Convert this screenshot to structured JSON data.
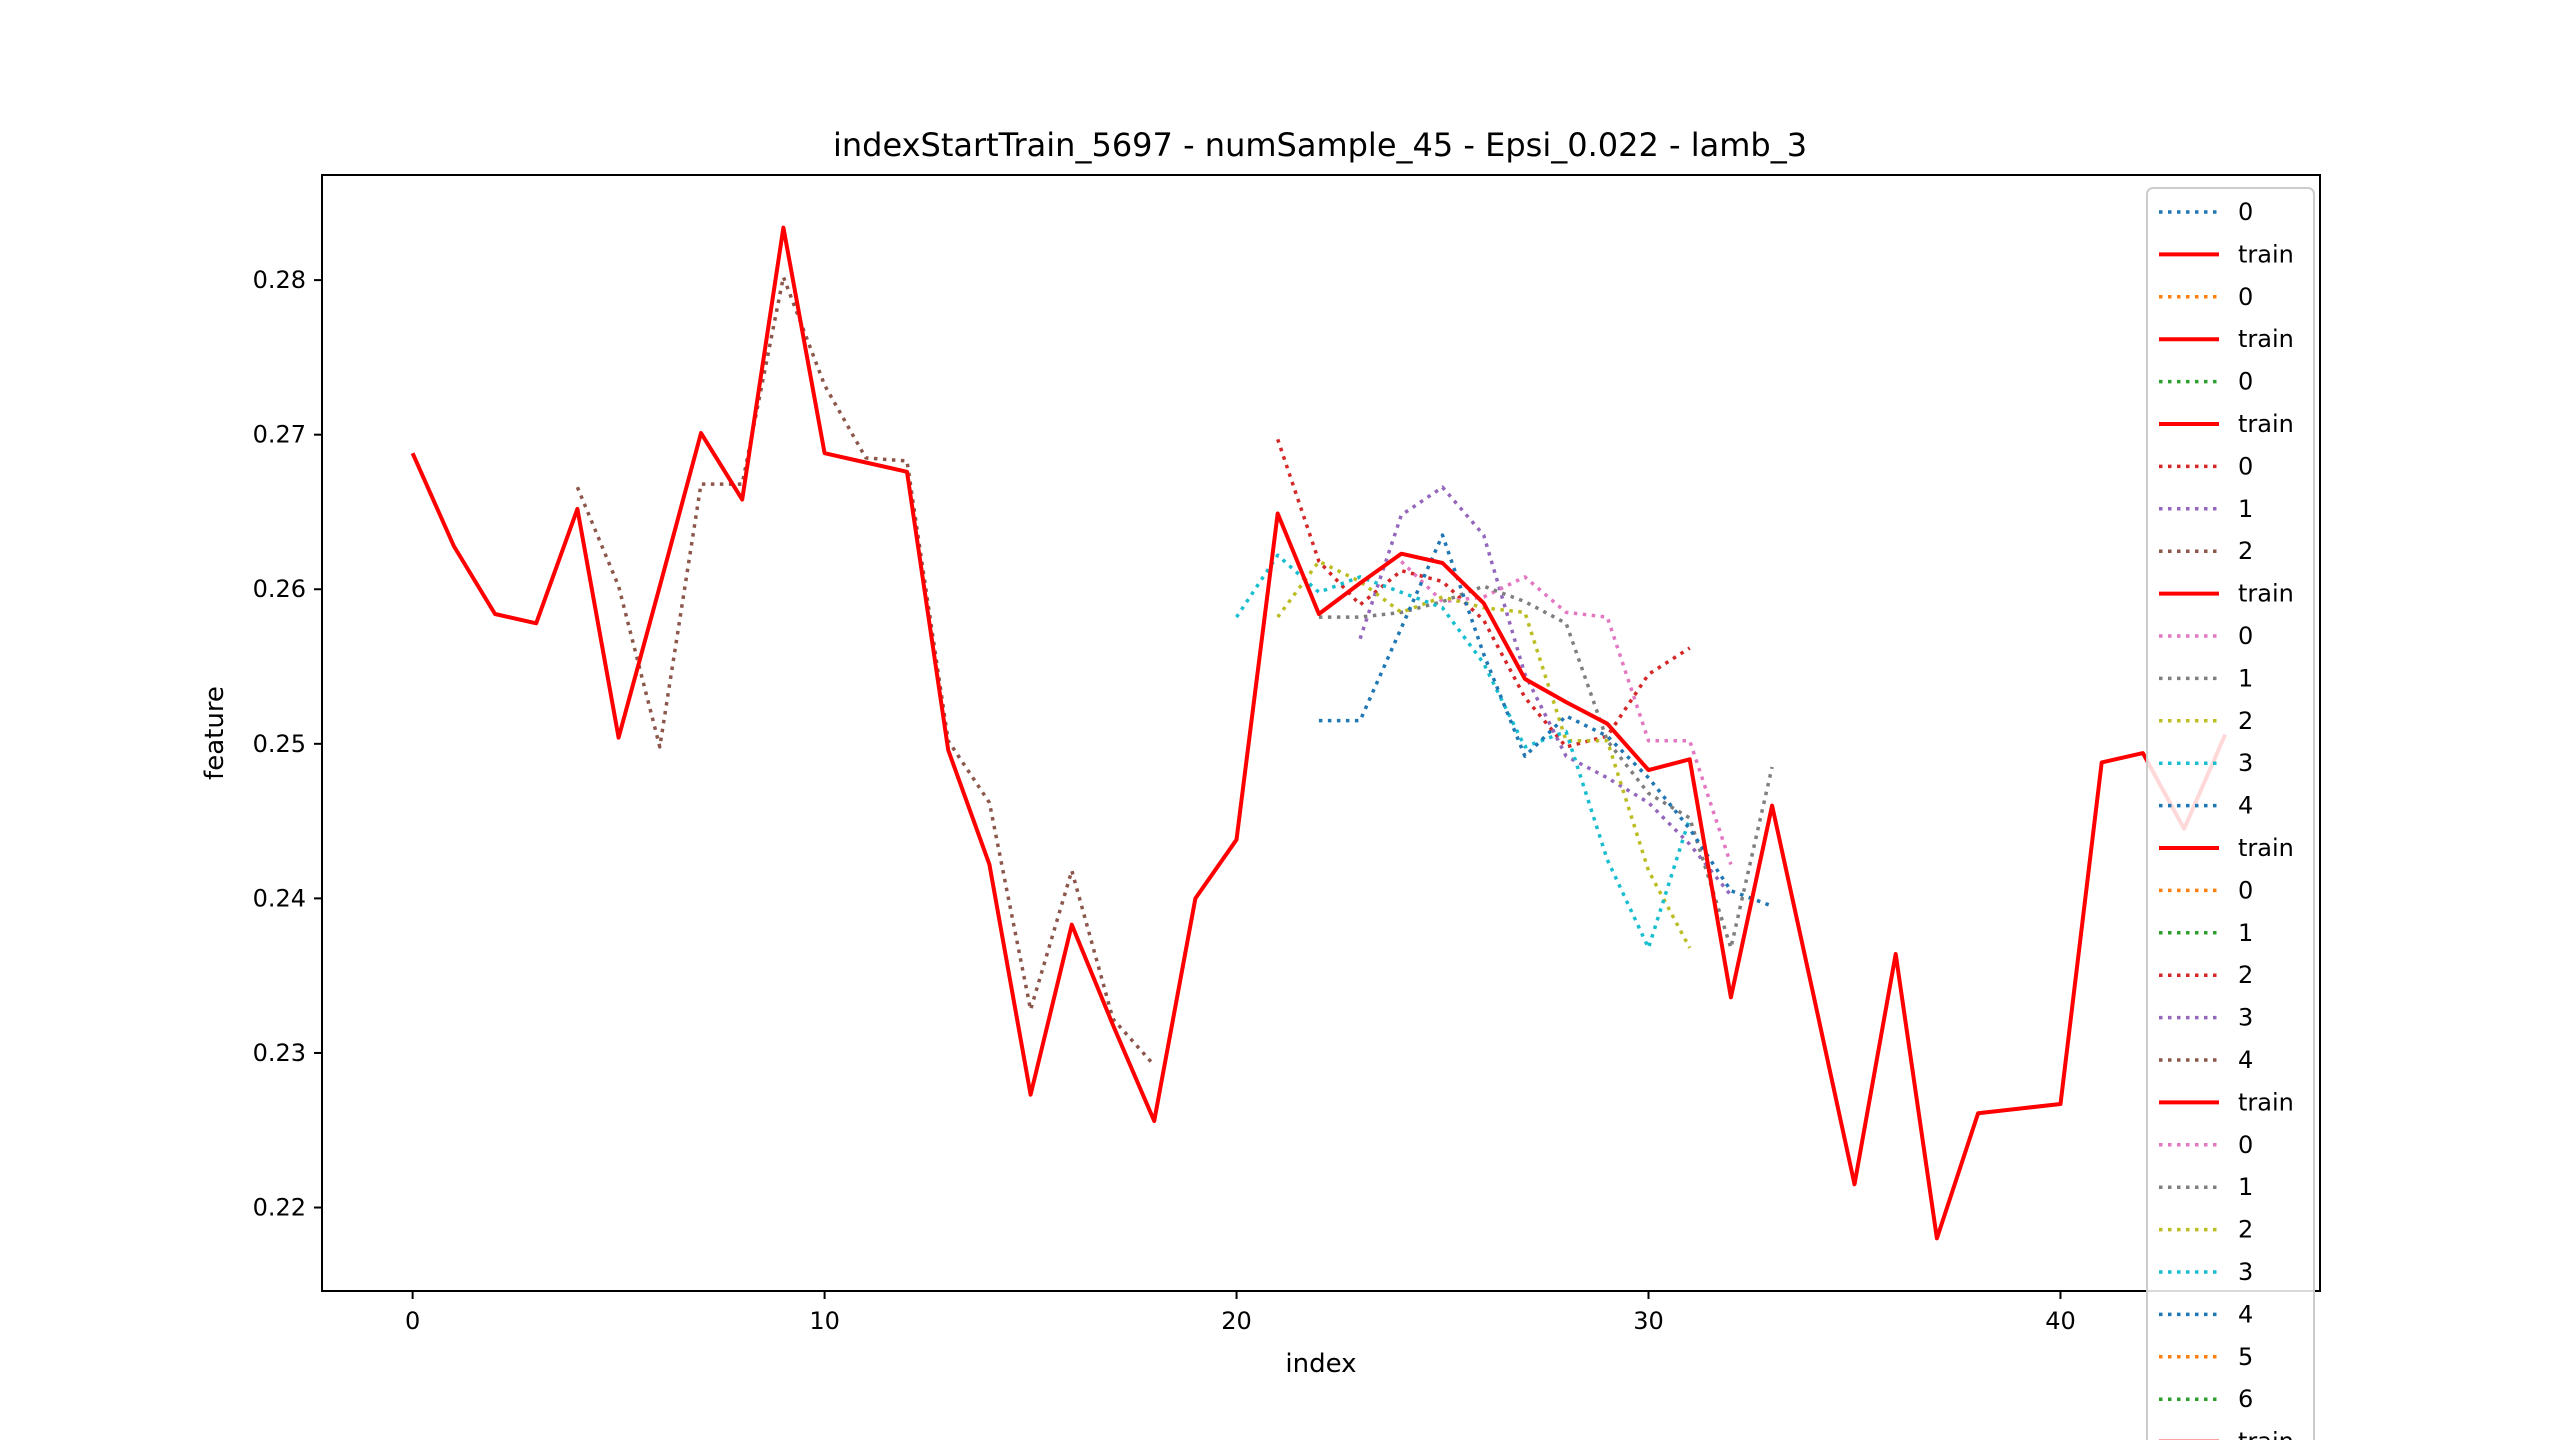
{
  "chart_data": {
    "type": "line",
    "title": "indexStartTrain_5697 - numSample_45 - Epsi_0.022 - lamb_3",
    "xlabel": "index",
    "ylabel": "feature",
    "xlim": [
      -2.2,
      46.3
    ],
    "ylim": [
      0.2146,
      0.2868
    ],
    "xticks": [
      0,
      10,
      20,
      30,
      40
    ],
    "yticks": [
      0.22,
      0.23,
      0.24,
      0.25,
      0.26,
      0.27,
      0.28
    ],
    "xtick_labels": [
      "0",
      "10",
      "20",
      "30",
      "40"
    ],
    "ytick_labels": [
      "0.22",
      "0.23",
      "0.24",
      "0.25",
      "0.26",
      "0.27",
      "0.28"
    ],
    "grid": false,
    "legend_position": "upper right",
    "series": [
      {
        "name": "0",
        "style": "dotted",
        "color": "#1f77b4",
        "x": [],
        "y": []
      },
      {
        "name": "train",
        "style": "solid",
        "color": "#ff0000",
        "x": [],
        "y": []
      },
      {
        "name": "0",
        "style": "dotted",
        "color": "#ff7f0e",
        "x": [],
        "y": []
      },
      {
        "name": "train",
        "style": "solid",
        "color": "#ff0000",
        "x": [],
        "y": []
      },
      {
        "name": "0",
        "style": "dotted",
        "color": "#2ca02c",
        "x": [],
        "y": []
      },
      {
        "name": "train",
        "style": "solid",
        "color": "#ff0000",
        "x": [],
        "y": []
      },
      {
        "name": "0",
        "style": "dotted",
        "color": "#d62728",
        "x": [
          21,
          22,
          23,
          24,
          25,
          26,
          27,
          28,
          29,
          30,
          31
        ],
        "y": [
          0.2697,
          0.2618,
          0.259,
          0.2612,
          0.2605,
          0.258,
          0.253,
          0.2498,
          0.2505,
          0.2545,
          0.2562
        ]
      },
      {
        "name": "1",
        "style": "dotted",
        "color": "#9467bd",
        "x": [
          23,
          24,
          25,
          26,
          27,
          28,
          29,
          30,
          31,
          32
        ],
        "y": [
          0.2568,
          0.2648,
          0.2666,
          0.2635,
          0.2545,
          0.2492,
          0.2478,
          0.2462,
          0.2435,
          0.2402
        ]
      },
      {
        "name": "2",
        "style": "dotted",
        "color": "#8c564b",
        "x": [
          4,
          5,
          6,
          7,
          8,
          9,
          10,
          11,
          12,
          13,
          14,
          15,
          16,
          17,
          18
        ],
        "y": [
          0.2666,
          0.2602,
          0.2498,
          0.2668,
          0.2668,
          0.2802,
          0.2732,
          0.2685,
          0.2683,
          0.2502,
          0.2462,
          0.2328,
          0.2418,
          0.2322,
          0.2292
        ]
      },
      {
        "name": "train",
        "style": "solid",
        "color": "#ff0000",
        "x": [],
        "y": []
      },
      {
        "name": "0",
        "style": "dotted",
        "color": "#e377c2",
        "x": [
          24,
          25,
          26,
          27,
          28,
          29,
          30,
          31,
          32
        ],
        "y": [
          0.2618,
          0.2592,
          0.2595,
          0.2608,
          0.2585,
          0.2582,
          0.2502,
          0.2502,
          0.2422
        ]
      },
      {
        "name": "1",
        "style": "dotted",
        "color": "#7f7f7f",
        "x": [
          22,
          23,
          24,
          25,
          26,
          27,
          28,
          29,
          30,
          31,
          32,
          33
        ],
        "y": [
          0.2582,
          0.2582,
          0.2585,
          0.2592,
          0.2602,
          0.2592,
          0.2578,
          0.2502,
          0.2468,
          0.2452,
          0.2368,
          0.2485
        ]
      },
      {
        "name": "2",
        "style": "dotted",
        "color": "#bcbd22",
        "x": [
          21,
          22,
          23,
          24,
          25,
          26,
          27,
          28,
          29,
          30,
          31
        ],
        "y": [
          0.2582,
          0.2618,
          0.2605,
          0.2585,
          0.2595,
          0.2588,
          0.2585,
          0.2502,
          0.2502,
          0.2418,
          0.2368
        ]
      },
      {
        "name": "3",
        "style": "dotted",
        "color": "#17becf",
        "x": [
          20,
          21,
          22,
          23,
          24,
          25,
          26,
          27,
          28,
          29,
          30,
          31
        ],
        "y": [
          0.2582,
          0.2622,
          0.2598,
          0.2608,
          0.2598,
          0.2588,
          0.2552,
          0.2498,
          0.2508,
          0.2425,
          0.2368,
          0.2452
        ]
      },
      {
        "name": "4",
        "style": "dotted",
        "color": "#1f77b4",
        "x": [
          22,
          23,
          24,
          25,
          26,
          27,
          28,
          29,
          30,
          31,
          32,
          33
        ],
        "y": [
          0.2515,
          0.2515,
          0.2575,
          0.2635,
          0.2558,
          0.2492,
          0.2518,
          0.2505,
          0.2478,
          0.2445,
          0.2405,
          0.2395
        ]
      },
      {
        "name": "train",
        "style": "solid",
        "color": "#ff0000",
        "x": [],
        "y": []
      },
      {
        "name": "0",
        "style": "dotted",
        "color": "#ff7f0e",
        "x": [],
        "y": []
      },
      {
        "name": "1",
        "style": "dotted",
        "color": "#2ca02c",
        "x": [],
        "y": []
      },
      {
        "name": "2",
        "style": "dotted",
        "color": "#d62728",
        "x": [],
        "y": []
      },
      {
        "name": "3",
        "style": "dotted",
        "color": "#9467bd",
        "x": [],
        "y": []
      },
      {
        "name": "4",
        "style": "dotted",
        "color": "#8c564b",
        "x": [],
        "y": []
      },
      {
        "name": "train",
        "style": "solid",
        "color": "#ff0000",
        "x": [],
        "y": []
      },
      {
        "name": "0",
        "style": "dotted",
        "color": "#e377c2",
        "x": [],
        "y": []
      },
      {
        "name": "1",
        "style": "dotted",
        "color": "#7f7f7f",
        "x": [],
        "y": []
      },
      {
        "name": "2",
        "style": "dotted",
        "color": "#bcbd22",
        "x": [],
        "y": []
      },
      {
        "name": "3",
        "style": "dotted",
        "color": "#17becf",
        "x": [],
        "y": []
      },
      {
        "name": "4",
        "style": "dotted",
        "color": "#1f77b4",
        "x": [],
        "y": []
      },
      {
        "name": "5",
        "style": "dotted",
        "color": "#ff7f0e",
        "x": [],
        "y": []
      },
      {
        "name": "6",
        "style": "dotted",
        "color": "#2ca02c",
        "x": [],
        "y": []
      },
      {
        "name": "train",
        "style": "solid",
        "color": "#ff0000",
        "x": [
          0,
          1,
          2,
          3,
          4,
          5,
          6,
          7,
          8,
          9,
          10,
          11,
          12,
          13,
          14,
          15,
          16,
          17,
          18,
          19,
          20,
          21,
          22,
          23,
          24,
          25,
          26,
          27,
          28,
          29,
          30,
          31,
          32,
          33,
          34,
          35,
          36,
          37,
          38,
          39,
          40,
          41,
          42,
          43,
          44
        ],
        "y": [
          0.2688,
          0.2628,
          0.2584,
          0.2578,
          0.2652,
          0.2504,
          0.2602,
          0.2701,
          0.2658,
          0.2834,
          0.2688,
          0.2682,
          0.2676,
          0.2496,
          0.2422,
          0.2273,
          0.2383,
          0.2318,
          0.2256,
          0.24,
          0.2438,
          0.2649,
          0.2584,
          0.2604,
          0.2623,
          0.2617,
          0.2591,
          0.2542,
          0.2527,
          0.2513,
          0.2483,
          0.249,
          0.2336,
          0.246,
          0.2338,
          0.2215,
          0.2364,
          0.218,
          0.2261,
          0.2264,
          0.2267,
          0.2488,
          0.2494,
          0.2445,
          0.2506
        ]
      }
    ]
  }
}
